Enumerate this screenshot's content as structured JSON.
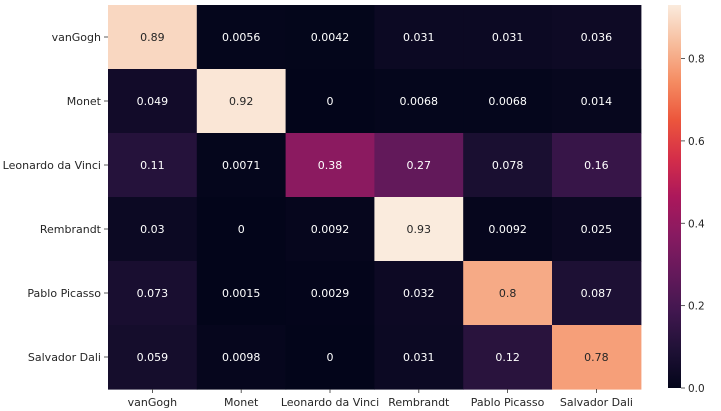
{
  "chart_data": {
    "type": "heatmap",
    "title": "",
    "xlabel": "",
    "ylabel": "",
    "rows": [
      "vanGogh",
      "Monet",
      "Leonardo da Vinci",
      "Rembrandt",
      "Pablo Picasso",
      "Salvador Dali"
    ],
    "columns": [
      "vanGogh",
      "Monet",
      "Leonardo da Vinci",
      "Rembrandt",
      "Pablo Picasso",
      "Salvador Dali"
    ],
    "values": [
      [
        0.89,
        0.0056,
        0.0042,
        0.031,
        0.031,
        0.036
      ],
      [
        0.049,
        0.92,
        0,
        0.0068,
        0.0068,
        0.014
      ],
      [
        0.11,
        0.0071,
        0.38,
        0.27,
        0.078,
        0.16
      ],
      [
        0.03,
        0,
        0.0092,
        0.93,
        0.0092,
        0.025
      ],
      [
        0.073,
        0.0015,
        0.0029,
        0.032,
        0.8,
        0.087
      ],
      [
        0.059,
        0.0098,
        0,
        0.031,
        0.12,
        0.78
      ]
    ],
    "cell_labels": [
      [
        "0.89",
        "0.0056",
        "0.0042",
        "0.031",
        "0.031",
        "0.036"
      ],
      [
        "0.049",
        "0.92",
        "0",
        "0.0068",
        "0.0068",
        "0.014"
      ],
      [
        "0.11",
        "0.0071",
        "0.38",
        "0.27",
        "0.078",
        "0.16"
      ],
      [
        "0.03",
        "0",
        "0.0092",
        "0.93",
        "0.0092",
        "0.025"
      ],
      [
        "0.073",
        "0.0015",
        "0.0029",
        "0.032",
        "0.8",
        "0.087"
      ],
      [
        "0.059",
        "0.0098",
        "0",
        "0.031",
        "0.12",
        "0.78"
      ]
    ],
    "colorbar": {
      "range": [
        0,
        0.93
      ],
      "ticks": [
        0.0,
        0.2,
        0.4,
        0.6,
        0.8
      ],
      "tick_labels": [
        "0.0",
        "0.2",
        "0.4",
        "0.6",
        "0.8"
      ]
    },
    "colormap": "rocket",
    "grid": false,
    "colors": {
      "low": "#03051a",
      "mid": "#a11a5b",
      "high": "#faebdd"
    }
  }
}
